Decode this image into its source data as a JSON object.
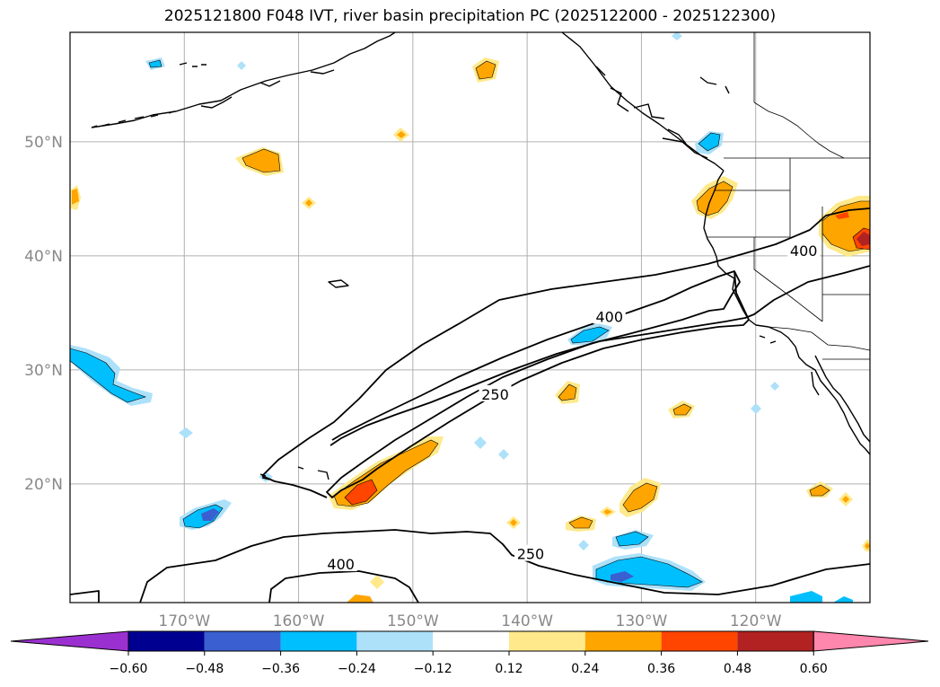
{
  "title": "2025121800 F048 IVT, river basin precipitation PC (2025122000 - 2025122300)",
  "map": {
    "lat_labels": [
      {
        "lat": 50,
        "label": "50°N"
      },
      {
        "lat": 40,
        "label": "40°N"
      },
      {
        "lat": 30,
        "label": "30°N"
      },
      {
        "lat": 20,
        "label": "20°N"
      }
    ],
    "lon_labels": [
      {
        "lon": -170,
        "label": "170°W"
      },
      {
        "lon": -160,
        "label": "160°W"
      },
      {
        "lon": -150,
        "label": "150°W"
      },
      {
        "lon": -140,
        "label": "140°W"
      },
      {
        "lon": -130,
        "label": "130°W"
      },
      {
        "lon": -120,
        "label": "120°W"
      }
    ],
    "ivt_contour_levels": [
      250,
      400
    ],
    "ivt_contour_labels": [
      {
        "text": "400",
        "lat": 40.4,
        "lon": -115.8
      },
      {
        "text": "400",
        "lat": 34.6,
        "lon": -132.8
      },
      {
        "text": "250",
        "lat": 27.8,
        "lon": -142.8
      },
      {
        "text": "250",
        "lat": 13.8,
        "lon": -139.7
      },
      {
        "text": "400",
        "lat": 12.9,
        "lon": -156.3
      }
    ]
  },
  "colorbar": {
    "colors": [
      "#9b30d0",
      "#000090",
      "#3a5fd0",
      "#00bfff",
      "#ade1fa",
      "#ffffff",
      "#ffe98a",
      "#ffa500",
      "#ff4500",
      "#b22222",
      "#ff86ad"
    ],
    "tick_labels": [
      "−0.60",
      "−0.48",
      "−0.36",
      "−0.24",
      "−0.12",
      "0.12",
      "0.24",
      "0.36",
      "0.48",
      "0.60"
    ]
  }
}
